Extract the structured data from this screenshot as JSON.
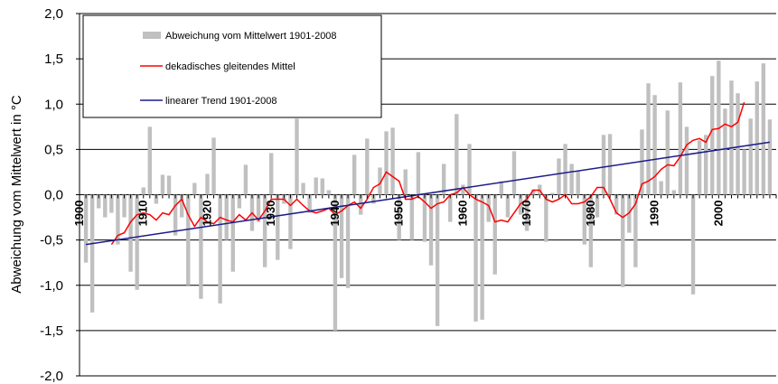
{
  "chart_data": {
    "type": "bar",
    "ylabel": "Abweichung vom Mittelwert in °C",
    "xlabel": "",
    "ylim": [
      -2.0,
      2.0
    ],
    "yticks": [
      "2,0",
      "1,5",
      "1,0",
      "0,5",
      "0,0",
      "-0,5",
      "-1,0",
      "-1,5",
      "-2,0"
    ],
    "ytick_values": [
      2.0,
      1.5,
      1.0,
      0.5,
      0.0,
      -0.5,
      -1.0,
      -1.5,
      -2.0
    ],
    "xticks": [
      "1900",
      "1910",
      "1920",
      "1930",
      "1940",
      "1950",
      "1960",
      "1970",
      "1980",
      "1990",
      "2000"
    ],
    "xtick_years": [
      1900,
      1910,
      1920,
      1930,
      1940,
      1950,
      1960,
      1970,
      1980,
      1990,
      2000
    ],
    "grid": true,
    "legend_position": "top-left",
    "legend": [
      "Abweichung vom Mittelwert 1901-2008",
      "dekadisches gleitendes Mittel",
      "linearer Trend 1901-2008"
    ],
    "colors": {
      "bars": "#c0c0c0",
      "moving_average": "#ff0000",
      "trend": "#1c1c8c",
      "grid": "#000000"
    },
    "series": [
      {
        "name": "Abweichung vom Mittelwert 1901-2008",
        "type": "bar",
        "x": [
          1901,
          1902,
          1903,
          1904,
          1905,
          1906,
          1907,
          1908,
          1909,
          1910,
          1911,
          1912,
          1913,
          1914,
          1915,
          1916,
          1917,
          1918,
          1919,
          1920,
          1921,
          1922,
          1923,
          1924,
          1925,
          1926,
          1927,
          1928,
          1929,
          1930,
          1931,
          1932,
          1933,
          1934,
          1935,
          1936,
          1937,
          1938,
          1939,
          1940,
          1941,
          1942,
          1943,
          1944,
          1945,
          1946,
          1947,
          1948,
          1949,
          1950,
          1951,
          1952,
          1953,
          1954,
          1955,
          1956,
          1957,
          1958,
          1959,
          1960,
          1961,
          1962,
          1963,
          1964,
          1965,
          1966,
          1967,
          1968,
          1969,
          1970,
          1971,
          1972,
          1973,
          1974,
          1975,
          1976,
          1977,
          1978,
          1979,
          1980,
          1981,
          1982,
          1983,
          1984,
          1985,
          1986,
          1987,
          1988,
          1989,
          1990,
          1991,
          1992,
          1993,
          1994,
          1995,
          1996,
          1997,
          1998,
          1999,
          2000,
          2001,
          2002,
          2003,
          2004,
          2005,
          2006,
          2007,
          2008
        ],
        "values": [
          -0.75,
          -1.3,
          -0.15,
          -0.25,
          -0.2,
          -0.55,
          -0.25,
          -0.85,
          -1.05,
          0.08,
          0.75,
          -0.1,
          0.22,
          0.21,
          -0.45,
          -0.25,
          -1.0,
          0.13,
          -1.15,
          0.23,
          0.63,
          -1.2,
          -0.5,
          -0.85,
          -0.15,
          0.33,
          -0.4,
          -0.3,
          -0.8,
          0.46,
          -0.72,
          -0.1,
          -0.6,
          0.84,
          0.13,
          -0.2,
          0.19,
          0.18,
          0.05,
          -1.5,
          -0.92,
          -1.03,
          0.44,
          -0.22,
          0.62,
          -0.1,
          0.3,
          0.7,
          0.74,
          -0.5,
          0.28,
          -0.5,
          0.47,
          -0.52,
          -0.78,
          -1.45,
          0.34,
          -0.3,
          0.89,
          0.11,
          0.56,
          -1.4,
          -1.38,
          -0.3,
          -0.88,
          0.15,
          -0.25,
          0.48,
          -0.22,
          -0.4,
          0.06,
          0.11,
          -0.52,
          0.02,
          0.4,
          0.56,
          0.34,
          0.26,
          -0.55,
          -0.8,
          -0.25,
          0.66,
          0.67,
          -0.22,
          -1.02,
          -0.42,
          -0.8,
          0.72,
          1.23,
          1.1,
          0.15,
          0.93,
          0.05,
          1.24,
          0.75,
          -1.1,
          0.6,
          0.66,
          1.31,
          1.48,
          0.95,
          1.26,
          1.12,
          0.5,
          0.84,
          1.25,
          1.45,
          0.83
        ]
      },
      {
        "name": "dekadisches gleitendes Mittel",
        "type": "line",
        "x": [
          1905,
          1906,
          1907,
          1908,
          1909,
          1910,
          1911,
          1912,
          1913,
          1914,
          1915,
          1916,
          1917,
          1918,
          1919,
          1920,
          1921,
          1922,
          1923,
          1924,
          1925,
          1926,
          1927,
          1928,
          1929,
          1930,
          1931,
          1932,
          1933,
          1934,
          1935,
          1936,
          1937,
          1938,
          1939,
          1940,
          1941,
          1942,
          1943,
          1944,
          1945,
          1946,
          1947,
          1948,
          1949,
          1950,
          1951,
          1952,
          1953,
          1954,
          1955,
          1956,
          1957,
          1958,
          1959,
          1960,
          1961,
          1962,
          1963,
          1964,
          1965,
          1966,
          1967,
          1968,
          1969,
          1970,
          1971,
          1972,
          1973,
          1974,
          1975,
          1976,
          1977,
          1978,
          1979,
          1980,
          1981,
          1982,
          1983,
          1984,
          1985,
          1986,
          1987,
          1988,
          1989,
          1990,
          1991,
          1992,
          1993,
          1994,
          1995,
          1996,
          1997,
          1998,
          1999,
          2000,
          2001,
          2002,
          2003,
          2004
        ],
        "values": [
          -0.55,
          -0.45,
          -0.42,
          -0.3,
          -0.22,
          -0.2,
          -0.22,
          -0.28,
          -0.2,
          -0.22,
          -0.12,
          -0.05,
          -0.22,
          -0.35,
          -0.25,
          -0.3,
          -0.32,
          -0.25,
          -0.28,
          -0.3,
          -0.22,
          -0.28,
          -0.2,
          -0.28,
          -0.18,
          -0.05,
          -0.05,
          -0.05,
          -0.12,
          -0.05,
          -0.12,
          -0.18,
          -0.2,
          -0.18,
          -0.15,
          -0.22,
          -0.18,
          -0.12,
          -0.08,
          -0.15,
          -0.05,
          0.08,
          0.12,
          0.25,
          0.2,
          0.15,
          -0.05,
          -0.05,
          -0.02,
          -0.08,
          -0.15,
          -0.1,
          -0.08,
          0.0,
          0.02,
          0.08,
          0.0,
          -0.05,
          -0.08,
          -0.12,
          -0.3,
          -0.28,
          -0.3,
          -0.2,
          -0.1,
          -0.05,
          0.05,
          0.05,
          -0.05,
          -0.08,
          -0.05,
          0.0,
          -0.1,
          -0.1,
          -0.08,
          -0.02,
          0.08,
          0.08,
          -0.05,
          -0.2,
          -0.25,
          -0.2,
          -0.1,
          0.12,
          0.15,
          0.2,
          0.28,
          0.33,
          0.32,
          0.42,
          0.55,
          0.6,
          0.62,
          0.58,
          0.72,
          0.73,
          0.78,
          0.75,
          0.8,
          1.02
        ]
      },
      {
        "name": "linearer Trend 1901-2008",
        "type": "line",
        "x": [
          1901,
          2008
        ],
        "values": [
          -0.55,
          0.58
        ]
      }
    ]
  }
}
